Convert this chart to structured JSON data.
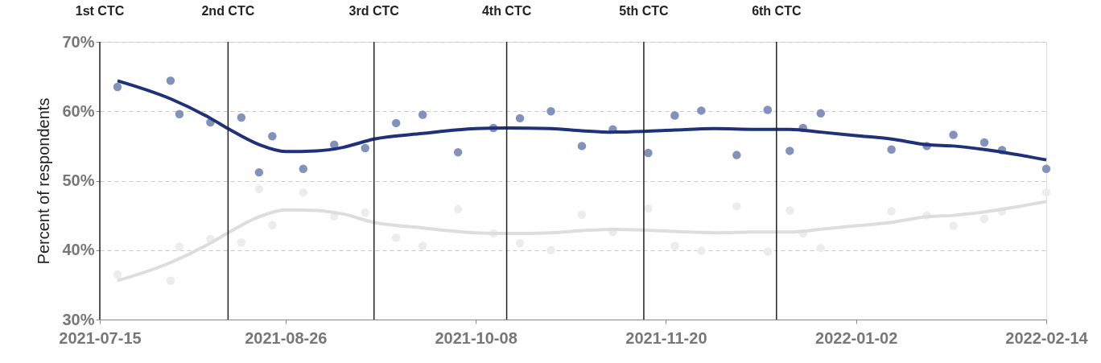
{
  "chart_data": {
    "type": "scatter",
    "ylabel": "Percent of respondents",
    "xlim": [
      "2021-07-15",
      "2022-02-14"
    ],
    "xticks": [
      "2021-07-15",
      "2021-08-26",
      "2021-10-08",
      "2021-11-20",
      "2022-01-02",
      "2022-02-14"
    ],
    "ylim": [
      30,
      70
    ],
    "yticks": [
      {
        "value": 30,
        "label": "30%"
      },
      {
        "value": 40,
        "label": "40%"
      },
      {
        "value": 50,
        "label": "50%"
      },
      {
        "value": 60,
        "label": "60%"
      },
      {
        "value": 70,
        "label": "70%"
      }
    ],
    "grid": "y",
    "x": [
      "2021-07-19",
      "2021-07-31",
      "2021-08-02",
      "2021-08-09",
      "2021-08-16",
      "2021-08-23",
      "2021-08-20",
      "2021-08-30",
      "2021-09-06",
      "2021-09-13",
      "2021-09-20",
      "2021-09-26",
      "2021-10-04",
      "2021-10-12",
      "2021-10-18",
      "2021-10-25",
      "2021-11-01",
      "2021-11-08",
      "2021-11-16",
      "2021-11-22",
      "2021-11-28",
      "2021-12-06",
      "2021-12-13",
      "2021-12-18",
      "2021-12-21",
      "2021-12-25",
      "2022-01-10",
      "2022-01-18",
      "2022-01-24",
      "2022-01-31",
      "2022-02-04",
      "2022-02-14"
    ],
    "series": [
      {
        "marker": "circle",
        "color": "#8391bd",
        "values": [
          63.5,
          64.4,
          59.6,
          58.4,
          59.1,
          56.4,
          51.2,
          51.7,
          55.2,
          54.7,
          58.3,
          59.5,
          54.1,
          57.6,
          59.0,
          60.0,
          55.0,
          57.4,
          54.0,
          59.4,
          60.1,
          53.7,
          60.2,
          54.3,
          57.6,
          59.7,
          54.5,
          55.0,
          56.6,
          55.5,
          54.4,
          51.7
        ]
      },
      {
        "marker": "circle",
        "color": "#ececec",
        "values": [
          36.5,
          35.6,
          40.5,
          41.6,
          41.1,
          43.6,
          48.8,
          48.3,
          44.9,
          45.4,
          41.8,
          40.6,
          45.9,
          42.4,
          41.0,
          40.0,
          45.1,
          42.6,
          46.0,
          40.6,
          39.9,
          46.3,
          39.8,
          45.7,
          42.4,
          40.3,
          45.6,
          45.0,
          43.5,
          44.5,
          45.6,
          48.3
        ]
      },
      {
        "type": "line",
        "color": "#1f3178",
        "x": [
          "2021-07-19",
          "2021-07-31",
          "2021-08-09",
          "2021-08-13",
          "2021-08-20",
          "2021-08-26",
          "2021-09-02",
          "2021-09-08",
          "2021-09-15",
          "2021-09-26",
          "2021-10-08",
          "2021-10-15",
          "2021-10-25",
          "2021-11-01",
          "2021-11-08",
          "2021-11-15",
          "2021-11-22",
          "2021-12-01",
          "2021-12-10",
          "2021-12-18",
          "2021-12-25",
          "2022-01-02",
          "2022-01-10",
          "2022-01-18",
          "2022-01-24",
          "2022-01-31",
          "2022-02-07",
          "2022-02-14"
        ],
        "values": [
          64.4,
          61.8,
          59.0,
          57.5,
          55.2,
          54.2,
          54.3,
          54.8,
          56.0,
          56.8,
          57.5,
          57.6,
          57.5,
          57.2,
          57.0,
          57.1,
          57.3,
          57.5,
          57.4,
          57.4,
          57.0,
          56.5,
          56.0,
          55.2,
          55.0,
          54.5,
          53.8,
          53.0
        ]
      },
      {
        "type": "line",
        "color": "#dddddd",
        "x": [
          "2021-07-19",
          "2021-07-31",
          "2021-08-09",
          "2021-08-13",
          "2021-08-20",
          "2021-08-26",
          "2021-09-02",
          "2021-09-08",
          "2021-09-15",
          "2021-09-26",
          "2021-10-08",
          "2021-10-15",
          "2021-10-25",
          "2021-11-01",
          "2021-11-08",
          "2021-11-15",
          "2021-11-22",
          "2021-12-01",
          "2021-12-10",
          "2021-12-18",
          "2021-12-25",
          "2022-01-02",
          "2022-01-10",
          "2022-01-18",
          "2022-01-24",
          "2022-01-31",
          "2022-02-07",
          "2022-02-14"
        ],
        "values": [
          35.6,
          38.2,
          41.0,
          42.5,
          44.8,
          45.8,
          45.7,
          45.2,
          44.0,
          43.2,
          42.5,
          42.4,
          42.5,
          42.8,
          43.0,
          42.9,
          42.7,
          42.5,
          42.6,
          42.6,
          43.0,
          43.5,
          44.0,
          44.8,
          45.0,
          45.5,
          46.2,
          47.0
        ]
      }
    ],
    "ref_lines": [
      {
        "axis": "x",
        "value": "2021-07-15",
        "label": "1st CTC",
        "color": "#222222"
      },
      {
        "axis": "x",
        "value": "2021-08-13",
        "label": "2nd CTC",
        "color": "#222222"
      },
      {
        "axis": "x",
        "value": "2021-09-15",
        "label": "3rd CTC",
        "color": "#222222"
      },
      {
        "axis": "x",
        "value": "2021-10-15",
        "label": "4th CTC",
        "color": "#222222"
      },
      {
        "axis": "x",
        "value": "2021-11-15",
        "label": "5th CTC",
        "color": "#222222"
      },
      {
        "axis": "x",
        "value": "2021-12-15",
        "label": "6th CTC",
        "color": "#222222"
      }
    ]
  }
}
